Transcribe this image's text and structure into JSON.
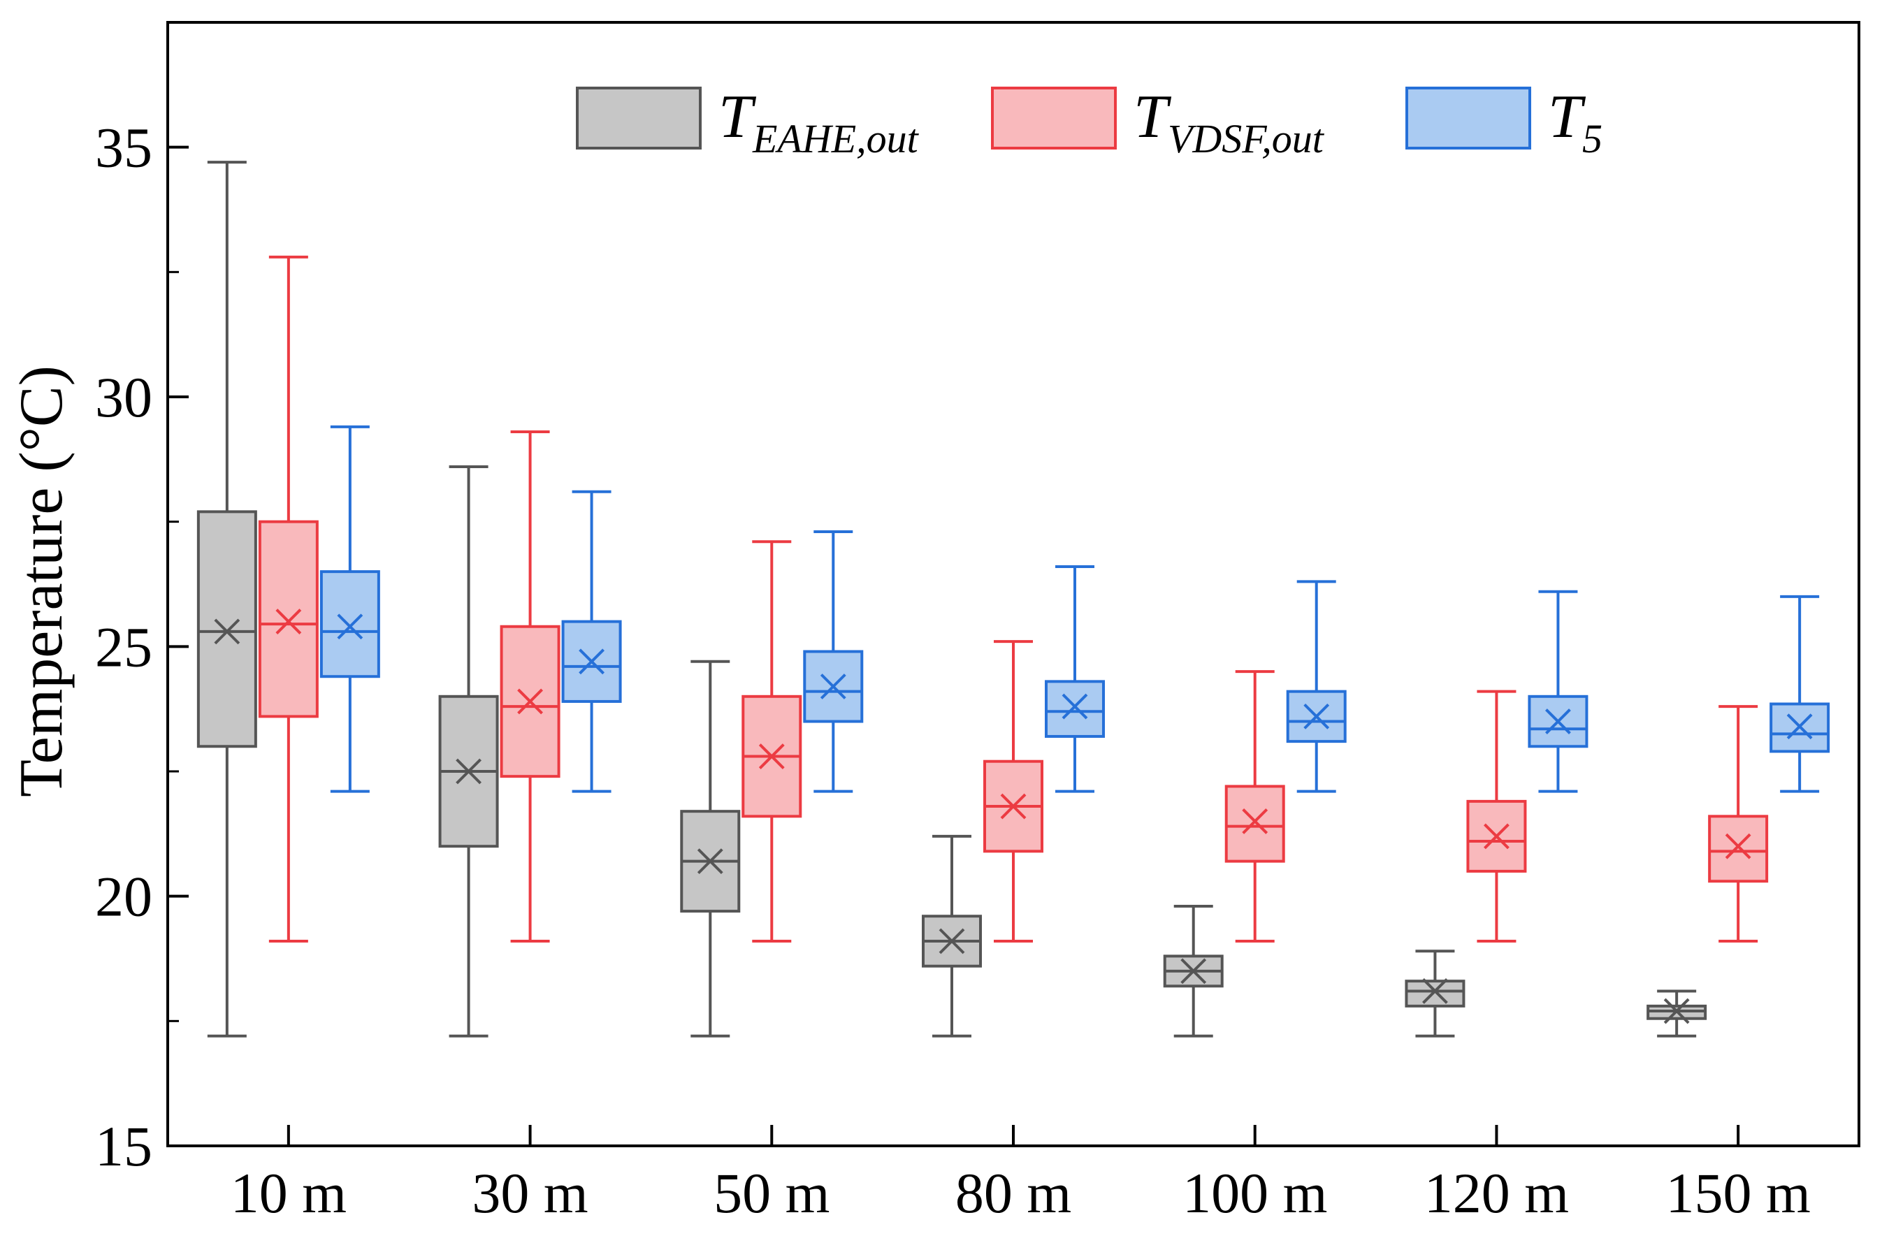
{
  "chart_data": {
    "type": "box",
    "ylabel": "Temperature (°C)",
    "xlabel": "",
    "ylim": [
      15,
      37.5
    ],
    "yticks": [
      15,
      20,
      25,
      30,
      35
    ],
    "ytick_labels": [
      "15",
      "20",
      "25",
      "30",
      "35"
    ],
    "categories": [
      "10 m",
      "30 m",
      "50 m",
      "80 m",
      "100 m",
      "120 m",
      "150 m"
    ],
    "grid": false,
    "legend_position": "top-center",
    "series": [
      {
        "name": "T_EAHE,out",
        "legend_main": "T",
        "legend_sub": "EAHE,out",
        "color": "#555555",
        "fill": "#c6c6c6",
        "boxes": [
          {
            "min": 17.2,
            "q1": 23.0,
            "median": 25.3,
            "q3": 27.7,
            "max": 34.7,
            "mean": 25.3
          },
          {
            "min": 17.2,
            "q1": 21.0,
            "median": 22.5,
            "q3": 24.0,
            "max": 28.6,
            "mean": 22.5
          },
          {
            "min": 17.2,
            "q1": 19.7,
            "median": 20.7,
            "q3": 21.7,
            "max": 24.7,
            "mean": 20.7
          },
          {
            "min": 17.2,
            "q1": 18.6,
            "median": 19.1,
            "q3": 19.6,
            "max": 21.2,
            "mean": 19.1
          },
          {
            "min": 17.2,
            "q1": 18.2,
            "median": 18.5,
            "q3": 18.8,
            "max": 19.8,
            "mean": 18.5
          },
          {
            "min": 17.2,
            "q1": 17.8,
            "median": 18.1,
            "q3": 18.3,
            "max": 18.9,
            "mean": 18.1
          },
          {
            "min": 17.2,
            "q1": 17.55,
            "median": 17.7,
            "q3": 17.8,
            "max": 18.1,
            "mean": 17.7
          }
        ]
      },
      {
        "name": "T_VDSF,out",
        "legend_main": "T",
        "legend_sub": "VDSF,out",
        "color": "#ec3b42",
        "fill": "#f9b9bc",
        "boxes": [
          {
            "min": 19.1,
            "q1": 23.6,
            "median": 25.45,
            "q3": 27.5,
            "max": 32.8,
            "mean": 25.5
          },
          {
            "min": 19.1,
            "q1": 22.4,
            "median": 23.8,
            "q3": 25.4,
            "max": 29.3,
            "mean": 23.9
          },
          {
            "min": 19.1,
            "q1": 21.6,
            "median": 22.8,
            "q3": 24.0,
            "max": 27.1,
            "mean": 22.8
          },
          {
            "min": 19.1,
            "q1": 20.9,
            "median": 21.8,
            "q3": 22.7,
            "max": 25.1,
            "mean": 21.8
          },
          {
            "min": 19.1,
            "q1": 20.7,
            "median": 21.4,
            "q3": 22.2,
            "max": 24.5,
            "mean": 21.5
          },
          {
            "min": 19.1,
            "q1": 20.5,
            "median": 21.1,
            "q3": 21.9,
            "max": 24.1,
            "mean": 21.2
          },
          {
            "min": 19.1,
            "q1": 20.3,
            "median": 20.9,
            "q3": 21.6,
            "max": 23.8,
            "mean": 21.0
          }
        ]
      },
      {
        "name": "T_5",
        "legend_main": "T",
        "legend_sub": "5",
        "color": "#2670d8",
        "fill": "#aacbf2",
        "boxes": [
          {
            "min": 22.1,
            "q1": 24.4,
            "median": 25.3,
            "q3": 26.5,
            "max": 29.4,
            "mean": 25.4
          },
          {
            "min": 22.1,
            "q1": 23.9,
            "median": 24.6,
            "q3": 25.5,
            "max": 28.1,
            "mean": 24.7
          },
          {
            "min": 22.1,
            "q1": 23.5,
            "median": 24.1,
            "q3": 24.9,
            "max": 27.3,
            "mean": 24.2
          },
          {
            "min": 22.1,
            "q1": 23.2,
            "median": 23.7,
            "q3": 24.3,
            "max": 26.6,
            "mean": 23.8
          },
          {
            "min": 22.1,
            "q1": 23.1,
            "median": 23.5,
            "q3": 24.1,
            "max": 26.3,
            "mean": 23.6
          },
          {
            "min": 22.1,
            "q1": 23.0,
            "median": 23.35,
            "q3": 24.0,
            "max": 26.1,
            "mean": 23.5
          },
          {
            "min": 22.1,
            "q1": 22.9,
            "median": 23.25,
            "q3": 23.85,
            "max": 26.0,
            "mean": 23.4
          }
        ]
      }
    ]
  }
}
